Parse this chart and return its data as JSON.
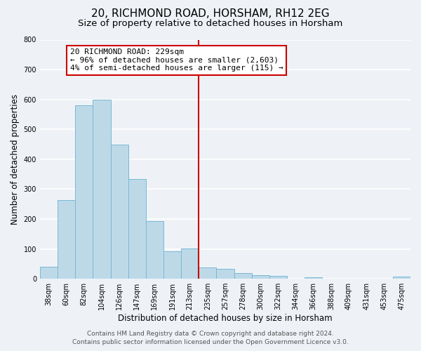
{
  "title": "20, RICHMOND ROAD, HORSHAM, RH12 2EG",
  "subtitle": "Size of property relative to detached houses in Horsham",
  "xlabel": "Distribution of detached houses by size in Horsham",
  "ylabel": "Number of detached properties",
  "bar_labels": [
    "38sqm",
    "60sqm",
    "82sqm",
    "104sqm",
    "126sqm",
    "147sqm",
    "169sqm",
    "191sqm",
    "213sqm",
    "235sqm",
    "257sqm",
    "278sqm",
    "300sqm",
    "322sqm",
    "344sqm",
    "366sqm",
    "388sqm",
    "409sqm",
    "431sqm",
    "453sqm",
    "475sqm"
  ],
  "bar_values": [
    40,
    263,
    580,
    598,
    450,
    333,
    193,
    91,
    101,
    37,
    32,
    20,
    13,
    10,
    0,
    5,
    0,
    0,
    0,
    0,
    7
  ],
  "bar_color": "#bdd9e8",
  "bar_edge_color": "#7ab8d4",
  "vline_color": "#cc0000",
  "annotation_line1": "20 RICHMOND ROAD: 229sqm",
  "annotation_line2": "← 96% of detached houses are smaller (2,603)",
  "annotation_line3": "4% of semi-detached houses are larger (115) →",
  "annotation_box_color": "#ffffff",
  "annotation_box_edge_color": "#cc0000",
  "ylim": [
    0,
    800
  ],
  "yticks": [
    0,
    100,
    200,
    300,
    400,
    500,
    600,
    700,
    800
  ],
  "footer_line1": "Contains HM Land Registry data © Crown copyright and database right 2024.",
  "footer_line2": "Contains public sector information licensed under the Open Government Licence v3.0.",
  "bg_color": "#eef2f7",
  "plot_bg_color": "#eef2f7",
  "grid_color": "#ffffff",
  "title_fontsize": 11,
  "subtitle_fontsize": 9.5,
  "axis_label_fontsize": 8.5,
  "tick_fontsize": 7,
  "footer_fontsize": 6.5,
  "annotation_fontsize": 8
}
